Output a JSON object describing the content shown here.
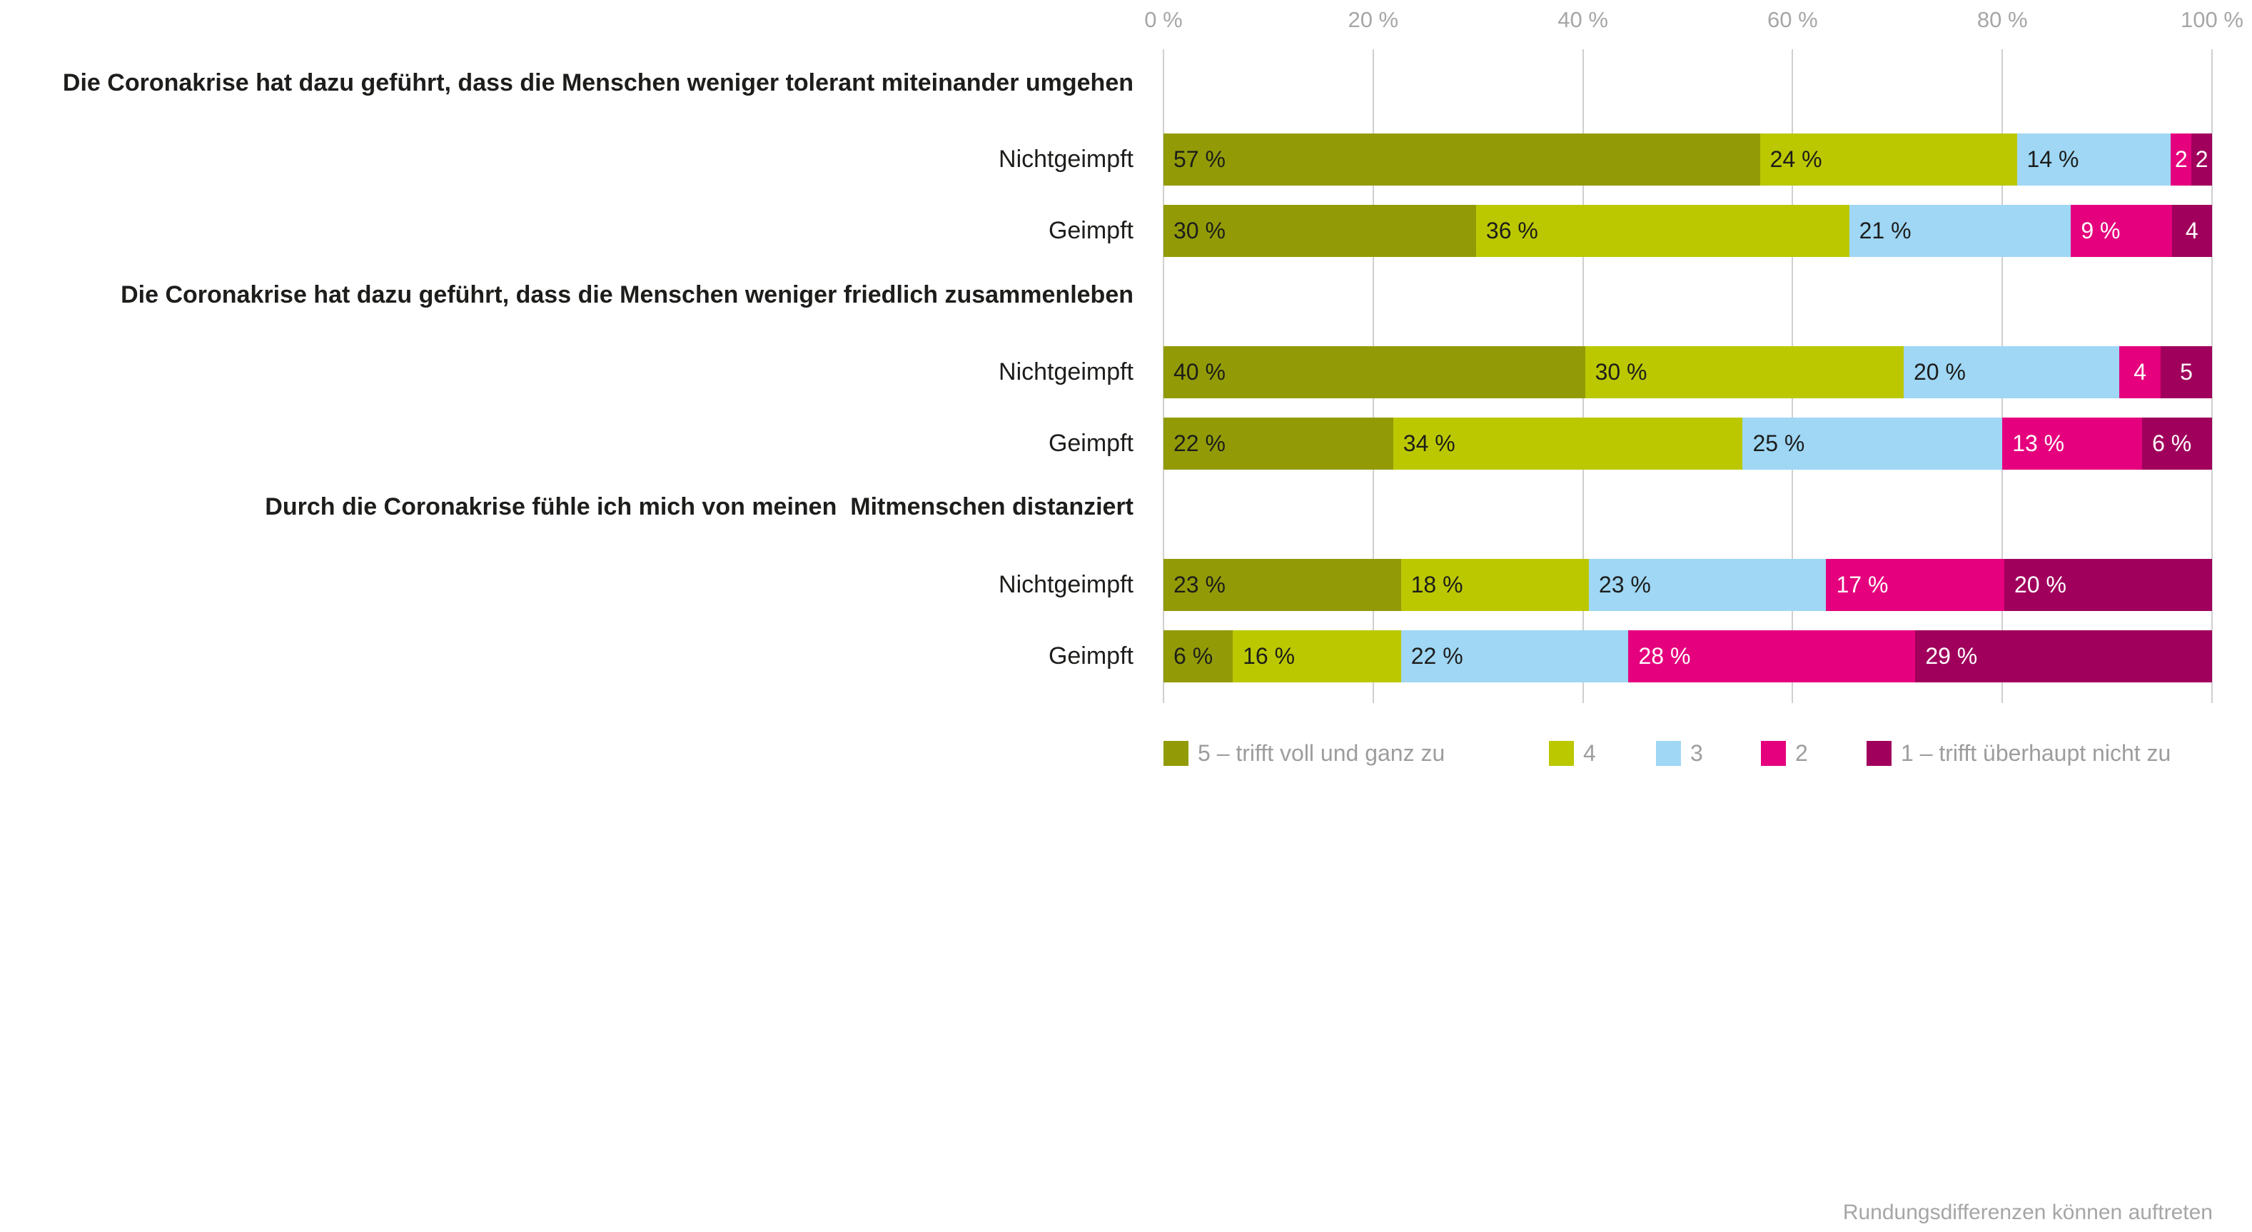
{
  "footnote": "Rundungsdifferenzen können auftreten",
  "chart_data": {
    "type": "bar",
    "variant": "horizontal-stacked-likert",
    "unit": "%",
    "title": "",
    "x_axis": {
      "min": 0,
      "max": 100,
      "grid": true,
      "ticks": [
        {
          "value": 0,
          "label": "0 %"
        },
        {
          "value": 20,
          "label": "20 %"
        },
        {
          "value": 40,
          "label": "40 %"
        },
        {
          "value": 60,
          "label": "60 %"
        },
        {
          "value": 80,
          "label": "80 %"
        },
        {
          "value": 100,
          "label": "100 %"
        }
      ]
    },
    "series_colors": [
      "#929B06",
      "#BBC800",
      "#9FD7F5",
      "#E5007D",
      "#A0005C"
    ],
    "label_colors": {
      "on_light_segments": "#1d1d1b",
      "on_dark_segments": "#ffffff"
    },
    "grid_color": "#cfcfcf",
    "legend": {
      "position": "bottom",
      "items": [
        {
          "value": "5",
          "label": "5 – trifft voll und ganz zu",
          "color": "#929B06"
        },
        {
          "value": "4",
          "label": "4",
          "color": "#BBC800"
        },
        {
          "value": "3",
          "label": "3",
          "color": "#9FD7F5"
        },
        {
          "value": "2",
          "label": "2",
          "color": "#E5007D"
        },
        {
          "value": "1",
          "label": "1 – trifft überhaupt nicht zu",
          "color": "#A0005C"
        }
      ]
    },
    "groups": [
      {
        "statement": "Die Coronakrise hat dazu geführt, dass die Menschen weniger tolerant miteinander umgehen",
        "rows": [
          {
            "category": "Nichtgeimpft",
            "values": [
              57,
              24,
              14,
              2,
              2
            ],
            "labels": [
              "57 %",
              "24 %",
              "14 %",
              "2",
              "2"
            ]
          },
          {
            "category": "Geimpft",
            "values": [
              30,
              36,
              21,
              9,
              4
            ],
            "labels": [
              "30 %",
              "36 %",
              "21 %",
              "9 %",
              "4"
            ]
          }
        ]
      },
      {
        "statement": "Die Coronakrise hat dazu geführt, dass die Menschen weniger friedlich zusammenleben",
        "rows": [
          {
            "category": "Nichtgeimpft",
            "values": [
              40,
              30,
              20,
              4,
              5
            ],
            "labels": [
              "40 %",
              "30 %",
              "20 %",
              "4",
              "5"
            ]
          },
          {
            "category": "Geimpft",
            "values": [
              22,
              34,
              25,
              13,
              6
            ],
            "labels": [
              "22 %",
              "34 %",
              "25 %",
              "13 %",
              "6 %"
            ]
          }
        ]
      },
      {
        "statement": "Durch die Coronakrise fühle ich mich von meinen  Mitmenschen distanziert",
        "rows": [
          {
            "category": "Nichtgeimpft",
            "values": [
              23,
              18,
              23,
              17,
              20
            ],
            "labels": [
              "23 %",
              "18 %",
              "23 %",
              "17 %",
              "20 %"
            ]
          },
          {
            "category": "Geimpft",
            "values": [
              6,
              16,
              22,
              28,
              29
            ],
            "labels": [
              "6 %",
              "16 %",
              "22 %",
              "28 %",
              "29 %"
            ]
          }
        ]
      }
    ]
  }
}
